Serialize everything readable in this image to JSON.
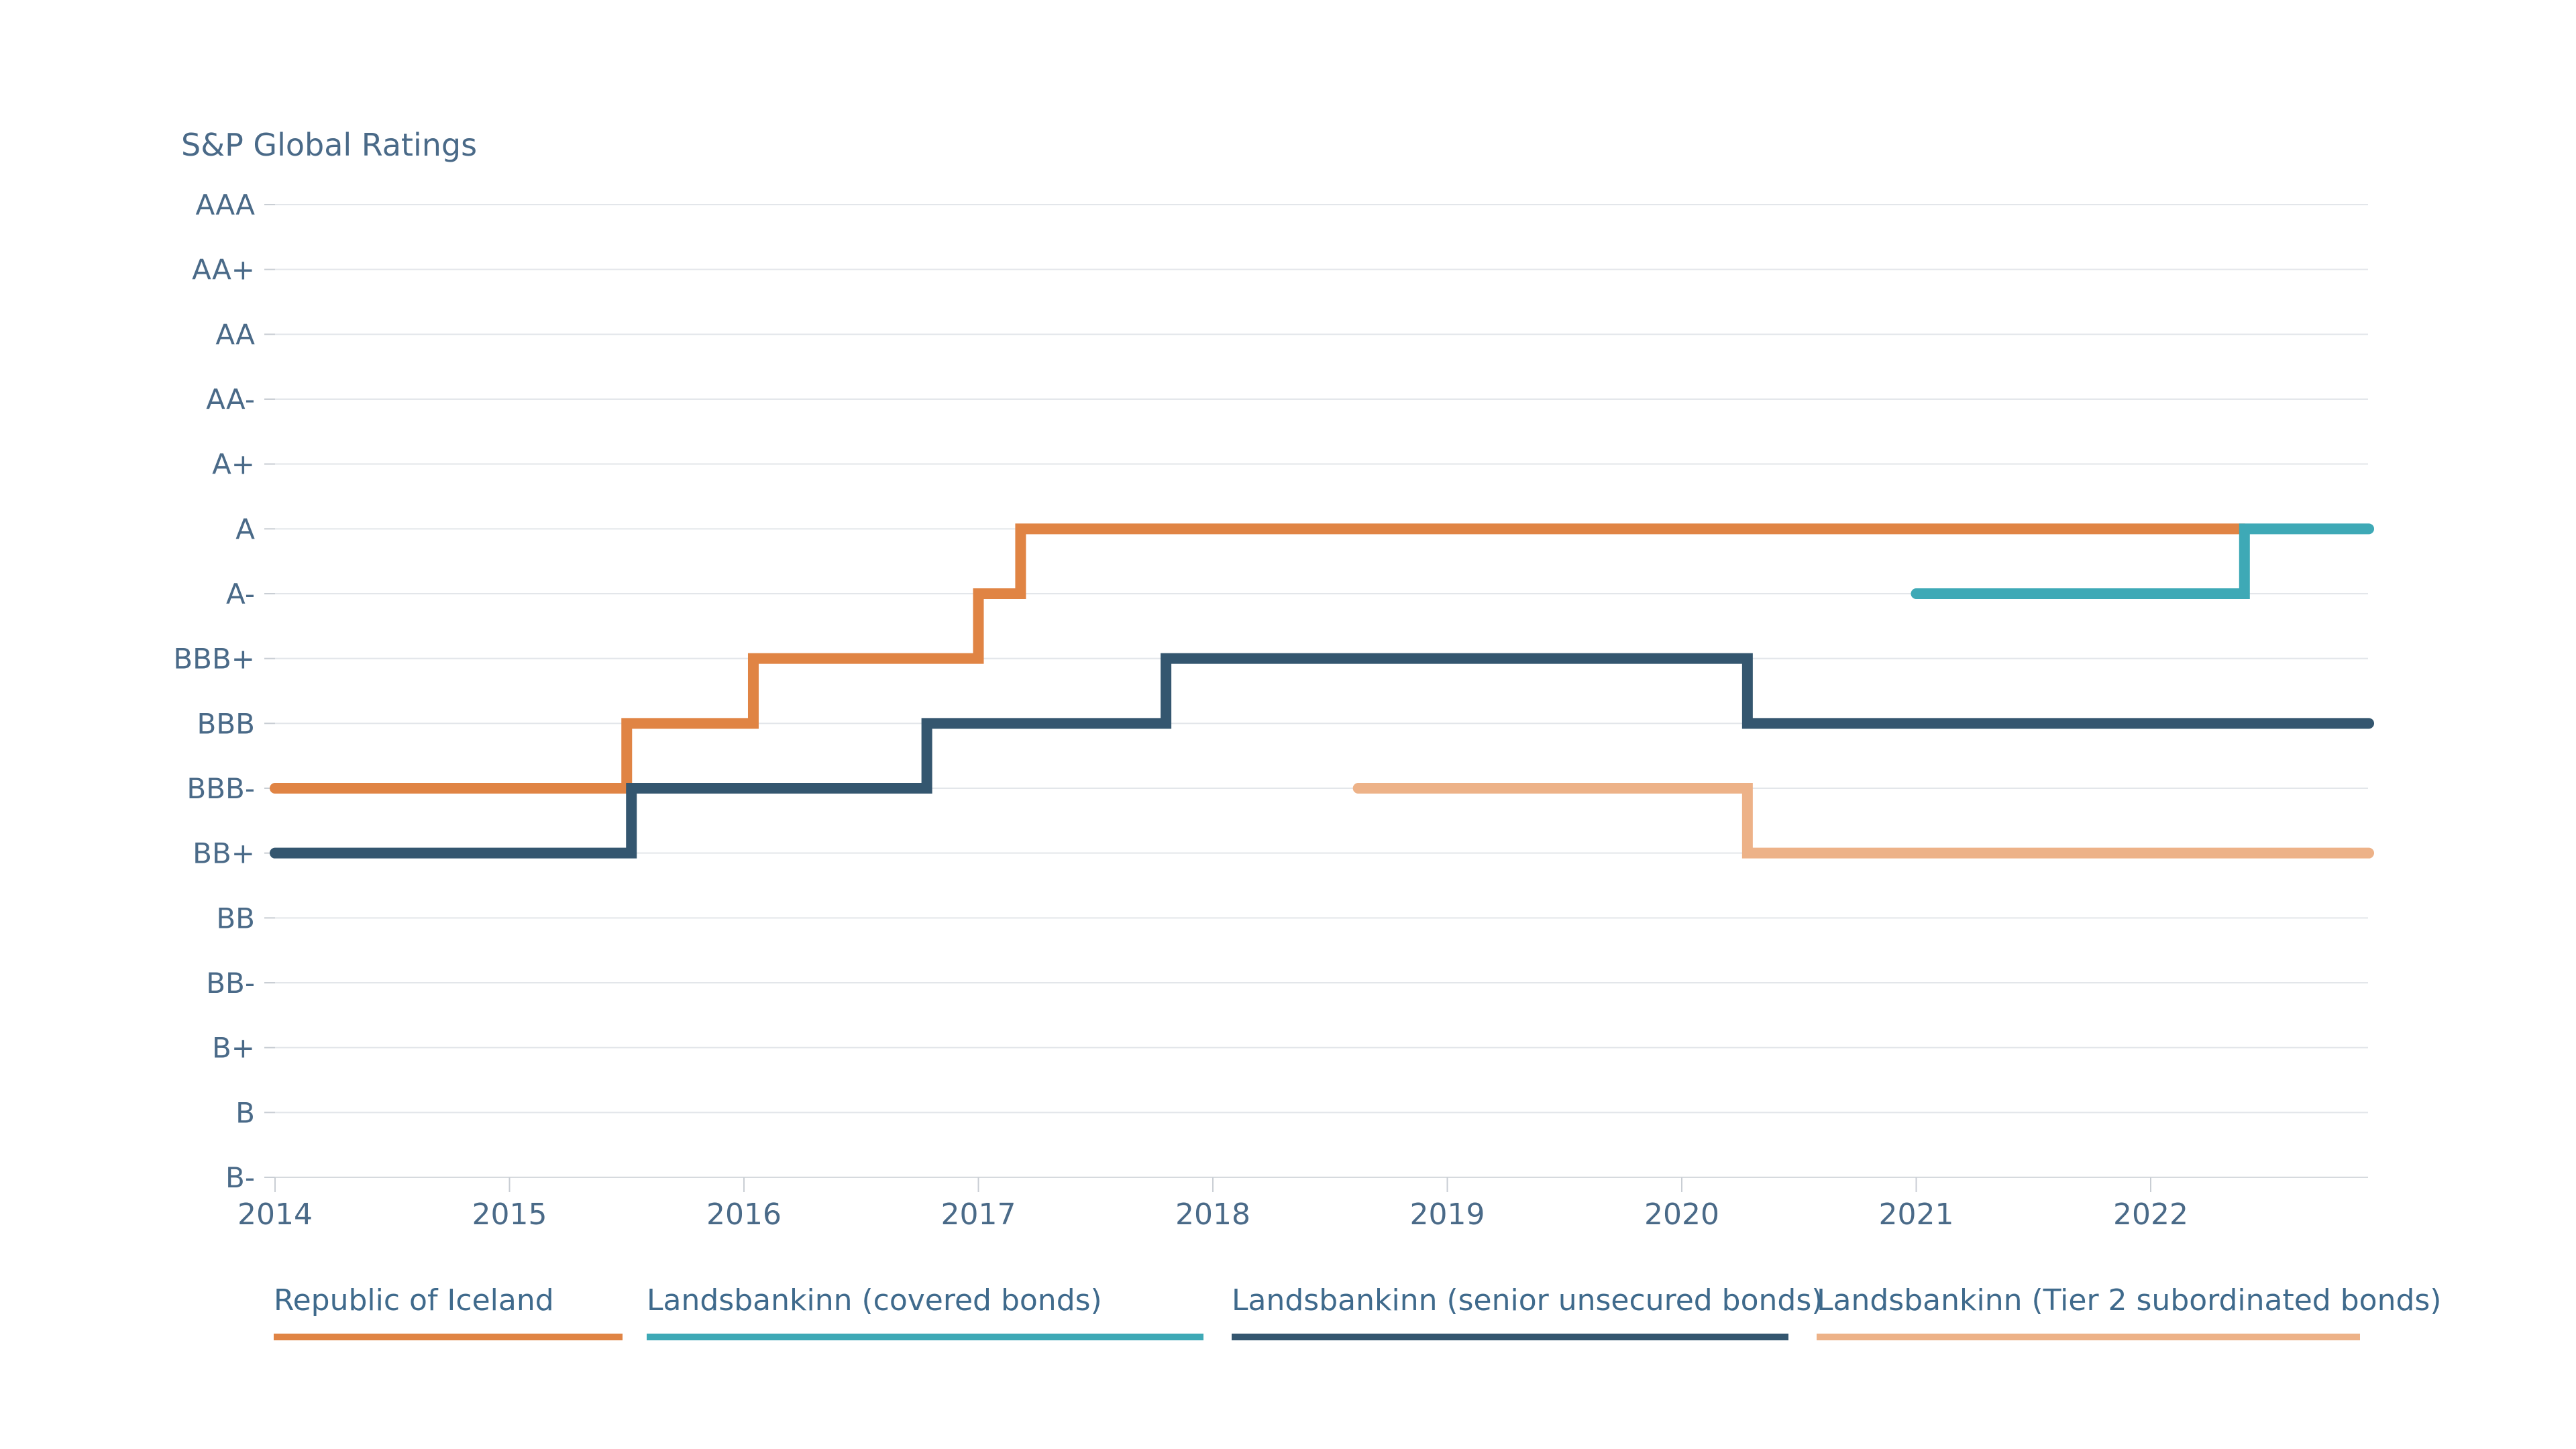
{
  "chart_data": {
    "type": "line",
    "step": true,
    "title": "S&P Global Ratings",
    "xlabel": "",
    "ylabel": "",
    "x_ticks": [
      2014,
      2015,
      2016,
      2017,
      2018,
      2019,
      2020,
      2021,
      2022
    ],
    "xlim": [
      2014,
      2022.93
    ],
    "y_categories": [
      "B-",
      "B",
      "B+",
      "BB-",
      "BB",
      "BB+",
      "BBB-",
      "BBB",
      "BBB+",
      "A-",
      "A",
      "A+",
      "AA-",
      "AA",
      "AA+",
      "AAA"
    ],
    "grid": true,
    "legend_position": "bottom",
    "series": [
      {
        "name": "Republic of Iceland",
        "color": "#e08444",
        "points": [
          {
            "x": 2014.0,
            "y": "BBB-"
          },
          {
            "x": 2015.5,
            "y": "BBB"
          },
          {
            "x": 2016.04,
            "y": "BBB+"
          },
          {
            "x": 2017.0,
            "y": "A-"
          },
          {
            "x": 2017.18,
            "y": "A"
          },
          {
            "x": 2022.4,
            "y": "A"
          }
        ]
      },
      {
        "name": "Landsbankinn (covered bonds)",
        "color": "#3ea9b6",
        "points": [
          {
            "x": 2021.0,
            "y": "A-"
          },
          {
            "x": 2022.4,
            "y": "A"
          },
          {
            "x": 2022.93,
            "y": "A"
          }
        ]
      },
      {
        "name": "Landsbankinn (senior unsecured bonds)",
        "color": "#34566f",
        "points": [
          {
            "x": 2014.0,
            "y": "BB+"
          },
          {
            "x": 2015.52,
            "y": "BBB-"
          },
          {
            "x": 2016.78,
            "y": "BBB"
          },
          {
            "x": 2017.8,
            "y": "BBB+"
          },
          {
            "x": 2020.28,
            "y": "BBB"
          },
          {
            "x": 2022.93,
            "y": "BBB"
          }
        ]
      },
      {
        "name": "Landsbankinn (Tier 2 subordinated bonds)",
        "color": "#edb288",
        "points": [
          {
            "x": 2018.62,
            "y": "BBB-"
          },
          {
            "x": 2020.28,
            "y": "BB+"
          },
          {
            "x": 2022.93,
            "y": "BB+"
          }
        ]
      }
    ]
  }
}
